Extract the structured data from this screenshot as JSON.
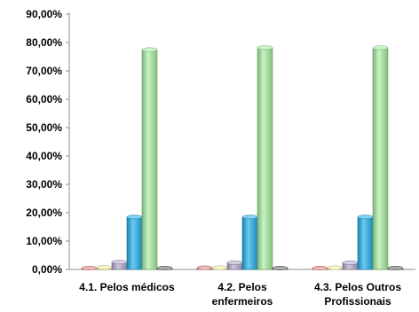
{
  "chart_data": {
    "type": "bar",
    "title": "",
    "xlabel": "",
    "ylabel": "",
    "ylim": [
      0,
      90
    ],
    "y_tick_values": [
      0,
      10,
      20,
      30,
      40,
      50,
      60,
      70,
      80,
      90
    ],
    "y_tick_labels": [
      "0,00%",
      "10,00%",
      "20,00%",
      "30,00%",
      "40,00%",
      "50,00%",
      "60,00%",
      "70,00%",
      "80,00%",
      "90,00%"
    ],
    "categories": [
      [
        "4.1. Pelos médicos"
      ],
      [
        "4.2. Pelos",
        "enfermeiros"
      ],
      [
        "4.3. Pelos Outros",
        "Profissionais"
      ]
    ],
    "grid": false,
    "legend": "none",
    "style_3d": true,
    "series": [
      {
        "color": "#e07a7a",
        "values": [
          0.3,
          0.6,
          0.3
        ]
      },
      {
        "color": "#f2ee9a",
        "values": [
          0.7,
          0.6,
          0.6
        ]
      },
      {
        "color": "#b3a6cc",
        "values": [
          2.6,
          2.4,
          2.4
        ]
      },
      {
        "color": "#1faee8",
        "values": [
          18.5,
          18.5,
          18.5
        ]
      },
      {
        "color": "#a8eea0",
        "values": [
          77.5,
          78.2,
          78.2
        ]
      },
      {
        "color": "#5f5f5f",
        "values": [
          0.2,
          0.1,
          0.1
        ]
      }
    ]
  }
}
